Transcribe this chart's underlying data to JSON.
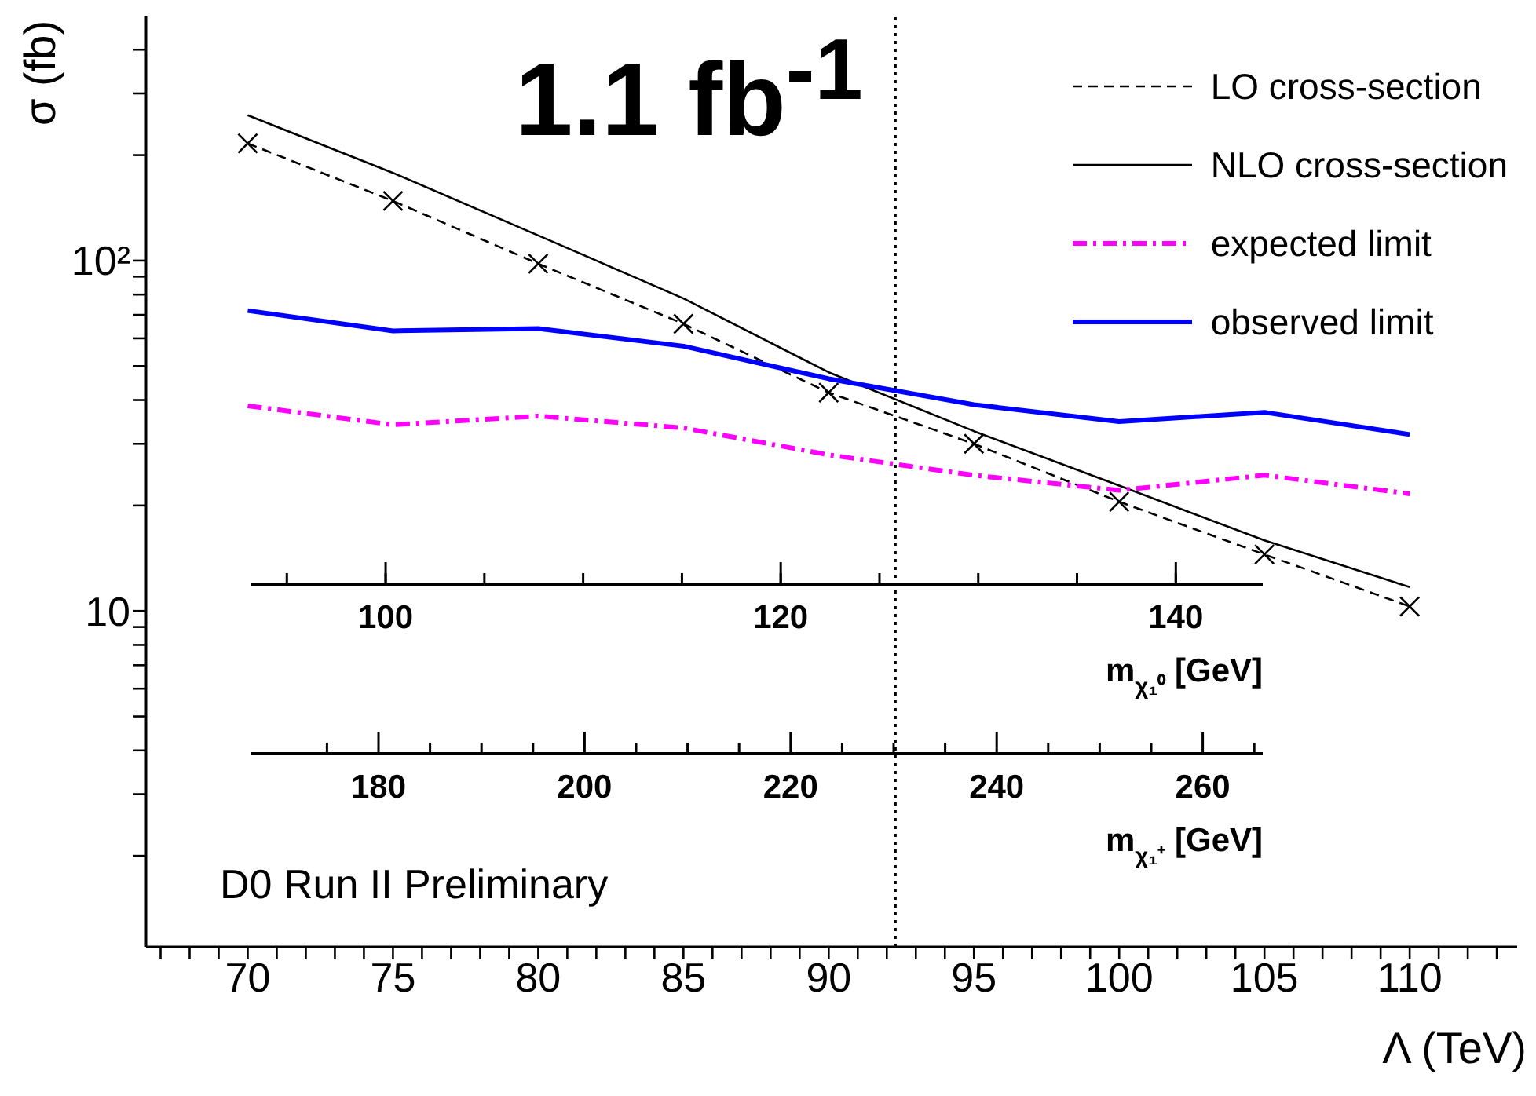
{
  "chart_data": {
    "type": "line",
    "title": "1.1 fb$^{-1}$",
    "xlabel": "Λ (TeV)",
    "ylabel": "σ (fb)",
    "x2label": "m$_{χ₁⁰}$ [GeV]",
    "annotations": [
      "D0 Run II Preliminary",
      "180",
      "200",
      "220",
      "240",
      "260",
      "m$_{χ₁⁺}$ [GeV]"
    ],
    "x": [
      70,
      75,
      80,
      85,
      90,
      95,
      100,
      105,
      110
    ],
    "series": [
      {
        "name": "LO cross-section",
        "color": "#000000",
        "line_style": "dashed",
        "marker": "cross",
        "values": [
          216,
          148,
          98,
          66,
          42,
          30,
          20.5,
          14.5,
          10.3
        ]
      },
      {
        "name": "NLO cross-section",
        "color": "#000000",
        "line_style": "solid",
        "marker": "none",
        "values": [
          260,
          178,
          118,
          78,
          48,
          32.6,
          22.8,
          15.9,
          11.7
        ]
      },
      {
        "name": "expected limit",
        "color": "#ff00ff",
        "line_style": "dashdot",
        "marker": "none",
        "values": [
          38.5,
          34,
          36,
          33.3,
          27.9,
          24.4,
          22.1,
          24.4,
          21.6
        ]
      },
      {
        "name": "observed limit",
        "color": "#0000ff",
        "line_style": "solid",
        "marker": "none",
        "values": [
          72,
          63,
          64,
          57,
          46,
          38.8,
          34.7,
          36.9,
          31.9
        ]
      }
    ],
    "log": "y",
    "legend": "top right",
    "ref_lines": [
      {
        "axis": "x",
        "value": 92.3,
        "line_style": "dotted",
        "color": "#000000"
      }
    ],
    "xlim": [
      66.5,
      113.7
    ],
    "xticks": [
      {
        "value": 67,
        "label": null
      },
      {
        "value": 68,
        "label": null
      },
      {
        "value": 69,
        "label": null
      },
      70,
      {
        "value": 71,
        "label": null
      },
      {
        "value": 72,
        "label": null
      },
      {
        "value": 73,
        "label": null
      },
      {
        "value": 74,
        "label": null
      },
      75,
      {
        "value": 76,
        "label": null
      },
      {
        "value": 77,
        "label": null
      },
      {
        "value": 78,
        "label": null
      },
      {
        "value": 79,
        "label": null
      },
      80,
      {
        "value": 81,
        "label": null
      },
      {
        "value": 82,
        "label": null
      },
      {
        "value": 83,
        "label": null
      },
      {
        "value": 84,
        "label": null
      },
      85,
      {
        "value": 86,
        "label": null
      },
      {
        "value": 87,
        "label": null
      },
      {
        "value": 88,
        "label": null
      },
      {
        "value": 89,
        "label": null
      },
      90,
      {
        "value": 91,
        "label": null
      },
      {
        "value": 92,
        "label": null
      },
      {
        "value": 93,
        "label": null
      },
      {
        "value": 94,
        "label": null
      },
      95,
      {
        "value": 96,
        "label": null
      },
      {
        "value": 97,
        "label": null
      },
      {
        "value": 98,
        "label": null
      },
      {
        "value": 99,
        "label": null
      },
      100,
      {
        "value": 101,
        "label": null
      },
      {
        "value": 102,
        "label": null
      },
      {
        "value": 103,
        "label": null
      },
      {
        "value": 104,
        "label": null
      },
      105,
      {
        "value": 106,
        "label": null
      },
      {
        "value": 107,
        "label": null
      },
      {
        "value": 108,
        "label": null
      },
      {
        "value": 109,
        "label": null
      },
      110,
      {
        "value": 111,
        "label": null
      },
      {
        "value": 112,
        "label": null
      },
      {
        "value": 113,
        "label": null
      }
    ],
    "ylim": [
      1.1,
      500
    ],
    "yticks": [
      {
        "value": 2,
        "label": null
      },
      {
        "value": 3,
        "label": null
      },
      {
        "value": 4,
        "label": null
      },
      {
        "value": 5,
        "label": null
      },
      {
        "value": 6,
        "label": null
      },
      {
        "value": 7,
        "label": null
      },
      {
        "value": 8,
        "label": null
      },
      {
        "value": 9,
        "label": null
      },
      10,
      {
        "value": 20,
        "label": null
      },
      {
        "value": 30,
        "label": null
      },
      {
        "value": 40,
        "label": null
      },
      {
        "value": 50,
        "label": null
      },
      {
        "value": 60,
        "label": null
      },
      {
        "value": 70,
        "label": null
      },
      {
        "value": 80,
        "label": null
      },
      {
        "value": 90,
        "label": null
      },
      {
        "value": 100,
        "label": "10²"
      },
      {
        "value": 200,
        "label": null
      },
      {
        "value": 300,
        "label": null
      },
      {
        "value": 400,
        "label": null
      }
    ],
    "x2lim": [
      93.2,
      144.4
    ],
    "x2ticks": [
      100,
      120,
      140
    ]
  }
}
